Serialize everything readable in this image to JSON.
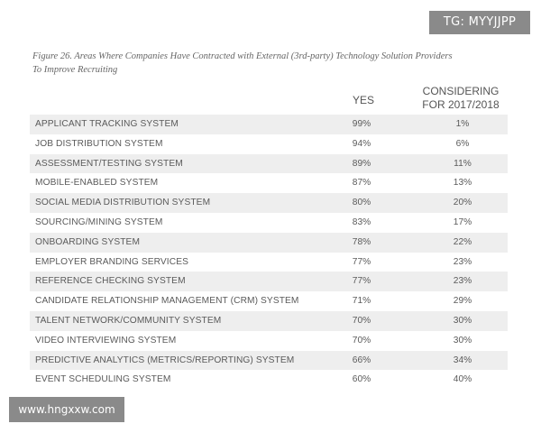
{
  "watermark_top": "TG: MYYJJPP",
  "watermark_bottom": "www.hngxxw.com",
  "caption": {
    "line1": "Figure 26. Areas Where Companies Have Contracted with External (3rd-party) Technology Solution Providers",
    "line2": "To Improve Recruiting"
  },
  "table": {
    "headers": {
      "yes": "YES",
      "considering_line1": "CONSIDERING",
      "considering_line2": "FOR 2017/2018"
    },
    "rows": [
      {
        "name": "APPLICANT TRACKING SYSTEM",
        "yes": "99%",
        "considering": "1%"
      },
      {
        "name": "JOB DISTRIBUTION SYSTEM",
        "yes": "94%",
        "considering": "6%"
      },
      {
        "name": "ASSESSMENT/TESTING SYSTEM",
        "yes": "89%",
        "considering": "11%"
      },
      {
        "name": "MOBILE-ENABLED SYSTEM",
        "yes": "87%",
        "considering": "13%"
      },
      {
        "name": "SOCIAL MEDIA DISTRIBUTION SYSTEM",
        "yes": "80%",
        "considering": "20%"
      },
      {
        "name": "SOURCING/MINING SYSTEM",
        "yes": "83%",
        "considering": "17%"
      },
      {
        "name": "ONBOARDING SYSTEM",
        "yes": "78%",
        "considering": "22%"
      },
      {
        "name": "EMPLOYER BRANDING SERVICES",
        "yes": "77%",
        "considering": "23%"
      },
      {
        "name": "REFERENCE CHECKING SYSTEM",
        "yes": "77%",
        "considering": "23%"
      },
      {
        "name": "CANDIDATE RELATIONSHIP MANAGEMENT (CRM) SYSTEM",
        "yes": "71%",
        "considering": "29%"
      },
      {
        "name": "TALENT NETWORK/COMMUNITY SYSTEM",
        "yes": "70%",
        "considering": "30%"
      },
      {
        "name": "VIDEO INTERVIEWING SYSTEM",
        "yes": "70%",
        "considering": "30%"
      },
      {
        "name": "PREDICTIVE ANALYTICS (METRICS/REPORTING) SYSTEM",
        "yes": "66%",
        "considering": "34%"
      },
      {
        "name": "EVENT SCHEDULING SYSTEM",
        "yes": "60%",
        "considering": "40%"
      }
    ]
  }
}
